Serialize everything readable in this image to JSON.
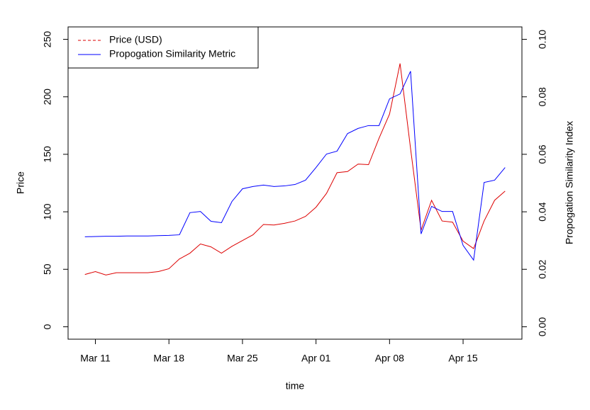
{
  "chart_data": {
    "type": "line",
    "xlabel": "time",
    "ylabel": "Price",
    "y2label": "Propogation Similarity Index",
    "categories": [
      "Mar 10",
      "Mar 11",
      "Mar 12",
      "Mar 13",
      "Mar 14",
      "Mar 15",
      "Mar 16",
      "Mar 17",
      "Mar 18",
      "Mar 19",
      "Mar 20",
      "Mar 21",
      "Mar 22",
      "Mar 23",
      "Mar 24",
      "Mar 25",
      "Mar 26",
      "Mar 27",
      "Mar 28",
      "Mar 29",
      "Mar 30",
      "Mar 31",
      "Apr 01",
      "Apr 02",
      "Apr 03",
      "Apr 04",
      "Apr 05",
      "Apr 06",
      "Apr 07",
      "Apr 08",
      "Apr 09",
      "Apr 10",
      "Apr 11",
      "Apr 12",
      "Apr 13",
      "Apr 14",
      "Apr 15",
      "Apr 16",
      "Apr 17",
      "Apr 18",
      "Apr 19"
    ],
    "xticks": [
      "Mar 11",
      "Mar 18",
      "Mar 25",
      "Apr 01",
      "Apr 08",
      "Apr 15"
    ],
    "series": [
      {
        "name": "Price (USD)",
        "color": "#dd0000",
        "legend_linestyle": "dashed",
        "values": [
          45.5,
          48,
          45,
          47,
          47,
          47,
          47,
          48,
          50.5,
          59,
          64,
          72,
          69.5,
          64,
          70,
          75,
          80,
          89,
          88.5,
          90,
          92,
          96,
          104,
          116,
          134,
          135,
          141.5,
          141,
          164,
          185,
          229,
          155,
          84,
          110,
          92,
          91,
          74.5,
          68,
          92,
          110,
          118
        ]
      },
      {
        "name": "Propogation Similarity Metric",
        "color": "#0000ff",
        "legend_linestyle": "solid",
        "axis": "y2",
        "values": [
          0.0313,
          0.0314,
          0.0315,
          0.0315,
          0.0316,
          0.0316,
          0.0316,
          0.0317,
          0.0318,
          0.032,
          0.0397,
          0.0401,
          0.0367,
          0.0362,
          0.0436,
          0.048,
          0.0488,
          0.0493,
          0.0488,
          0.049,
          0.0495,
          0.051,
          0.0554,
          0.0601,
          0.0611,
          0.0672,
          0.069,
          0.07,
          0.07,
          0.0793,
          0.081,
          0.0889,
          0.0323,
          0.0419,
          0.0401,
          0.0401,
          0.0283,
          0.0232,
          0.0502,
          0.051,
          0.0554
        ]
      }
    ],
    "ylim": [
      -10.8,
      260.8
    ],
    "yticks": [
      0,
      50,
      100,
      150,
      200,
      250
    ],
    "y2lim": [
      -0.00432,
      0.10432
    ],
    "y2ticks": [
      {
        "value": 0,
        "label": "0.00"
      },
      {
        "value": 0.02,
        "label": "0.02"
      },
      {
        "value": 0.04,
        "label": "0.04"
      },
      {
        "value": 0.06,
        "label": "0.06"
      },
      {
        "value": 0.08,
        "label": "0.08"
      },
      {
        "value": 0.1,
        "label": "0.10"
      }
    ],
    "legend": "top-left"
  }
}
